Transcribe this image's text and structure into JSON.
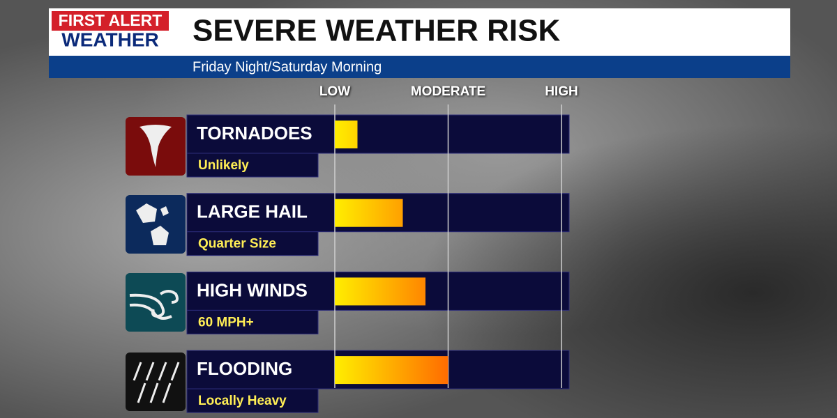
{
  "header": {
    "brand_top": "FIRST ALERT",
    "brand_bottom": "WEATHER",
    "title": "SEVERE WEATHER RISK",
    "subtitle": "Friday Night/Saturday Morning"
  },
  "chart_data": {
    "type": "bar",
    "orientation": "horizontal",
    "categories": [
      "TORNADOES",
      "LARGE HAIL",
      "HIGH WINDS",
      "FLOODING"
    ],
    "descriptions": [
      "Unlikely",
      "Quarter Size",
      "60 MPH+",
      "Locally Heavy"
    ],
    "values": [
      0.2,
      0.6,
      0.8,
      1.0
    ],
    "xlim": [
      0,
      2
    ],
    "xticks": [
      {
        "value": 0,
        "label": "LOW"
      },
      {
        "value": 1,
        "label": "MODERATE"
      },
      {
        "value": 2,
        "label": "HIGH"
      }
    ],
    "grid": true
  }
}
